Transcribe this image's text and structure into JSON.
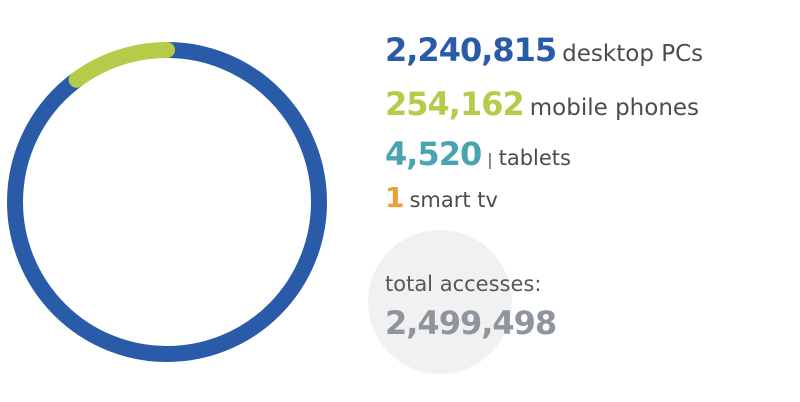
{
  "chart_data": {
    "type": "pie",
    "style": "donut",
    "categories": [
      "desktop PCs",
      "mobile phones",
      "tablets",
      "smart tv"
    ],
    "values": [
      2240815,
      254162,
      4520,
      1
    ],
    "display_values": [
      "2,240,815",
      "254,162",
      "4,520",
      "1"
    ],
    "colors": [
      "#2a5ba8",
      "#b5cc4a",
      "#4aa3b0",
      "#eba03a"
    ],
    "separators": [
      "",
      "",
      "|",
      ""
    ],
    "legend_placement": "right",
    "total_label": "total accesses:",
    "total_value": "2,499,498"
  },
  "colors": {
    "total_value": "#8e959c",
    "total_circle": "#f1f1f1",
    "label_text": "#4a4c50"
  }
}
